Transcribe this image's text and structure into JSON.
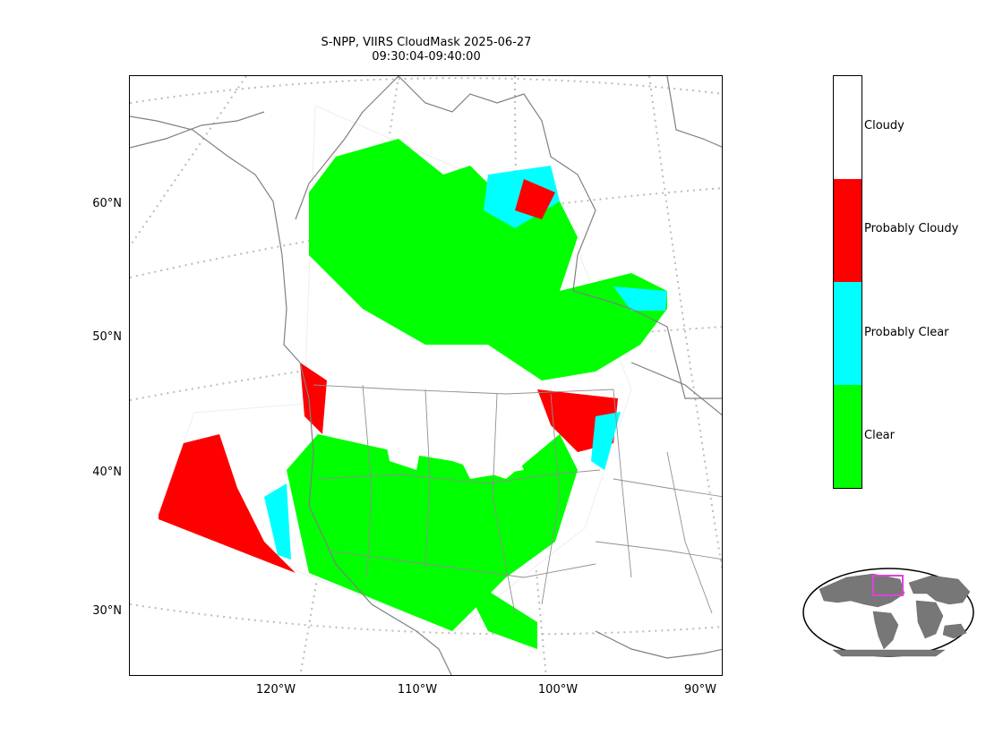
{
  "title": {
    "line1": "S-NPP, VIIRS CloudMask 2025-06-27",
    "line2": "09:30:04-09:40:00"
  },
  "lat_labels": [
    "60°N",
    "50°N",
    "40°N",
    "30°N"
  ],
  "lon_labels": [
    "120°W",
    "110°W",
    "100°W",
    "90°W"
  ],
  "colorbar": {
    "categories": [
      {
        "label": "Cloudy",
        "color": "#ffffff"
      },
      {
        "label": "Probably Cloudy",
        "color": "#ff0000"
      },
      {
        "label": "Probably Clear",
        "color": "#00ffff"
      },
      {
        "label": "Clear",
        "color": "#00ff00"
      }
    ]
  },
  "colors": {
    "clear": "#00ff00",
    "probably_clear": "#00ffff",
    "probably_cloudy": "#ff0000",
    "cloudy": "#ffffff",
    "coastline": "#808080",
    "graticule": "#bbbbbb",
    "inset_land": "#777777",
    "inset_box": "#e040e0"
  }
}
